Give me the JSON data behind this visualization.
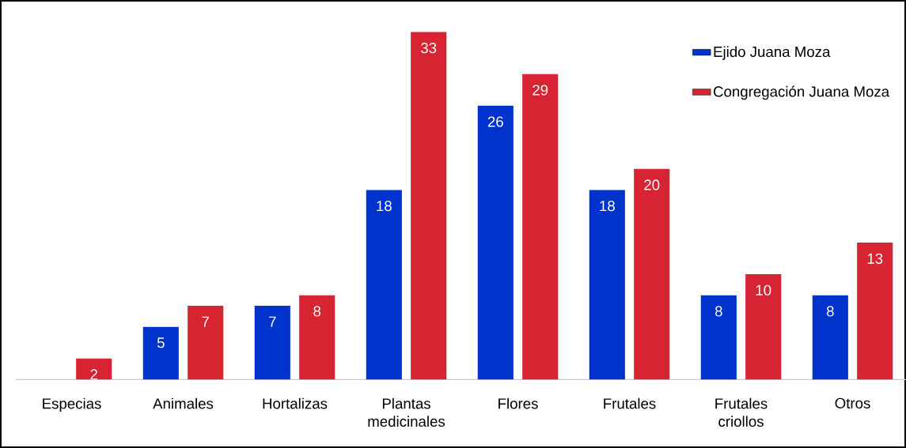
{
  "chart_data": {
    "type": "bar",
    "categories": [
      "Especias",
      "Animales",
      "Hortalizas",
      "Plantas medicinales",
      "Flores",
      "Frutales",
      "Frutales criollos",
      "Otros"
    ],
    "series": [
      {
        "name": "Ejido Juana Moza",
        "color": "#0033cc",
        "values": [
          null,
          5,
          7,
          18,
          26,
          18,
          8,
          8
        ]
      },
      {
        "name": "Congregación Juana Moza",
        "color": "#d62433",
        "values": [
          2,
          7,
          8,
          33,
          29,
          20,
          10,
          13
        ]
      }
    ],
    "data_labels": true,
    "legend": "top right"
  }
}
